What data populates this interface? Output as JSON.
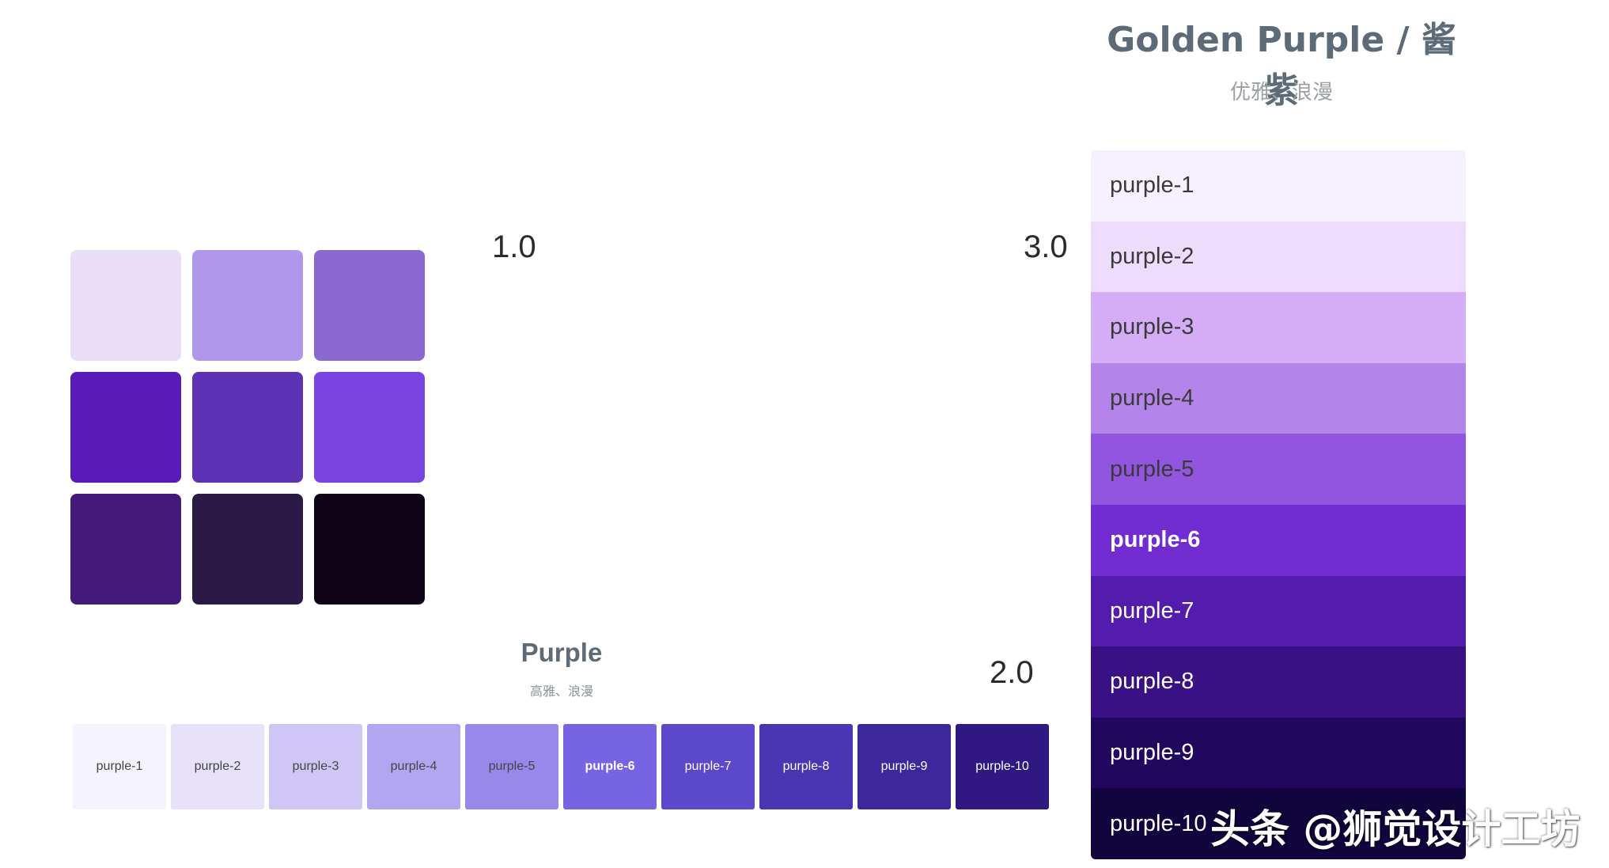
{
  "section1": {
    "version": "1.0",
    "squares": [
      {
        "color": "#e8def8"
      },
      {
        "color": "#b197ec"
      },
      {
        "color": "#8b69d1"
      },
      {
        "color": "#5a1ab8"
      },
      {
        "color": "#5e32b4"
      },
      {
        "color": "#7c43e3"
      },
      {
        "color": "#431a7a"
      },
      {
        "color": "#2b1a46"
      },
      {
        "color": "#100518"
      }
    ]
  },
  "section2": {
    "version": "2.0",
    "title": "Purple",
    "subtitle": "高雅、浪漫",
    "swatches": [
      {
        "label": "purple-1",
        "color": "#f5f3fd",
        "text_color": "#444444"
      },
      {
        "label": "purple-2",
        "color": "#e7e1f9",
        "text_color": "#444444"
      },
      {
        "label": "purple-3",
        "color": "#d0c6f5",
        "text_color": "#444444"
      },
      {
        "label": "purple-4",
        "color": "#b3a6f0",
        "text_color": "#444444"
      },
      {
        "label": "purple-5",
        "color": "#9888e9",
        "text_color": "#444444"
      },
      {
        "label": "purple-6",
        "color": "#7664e3",
        "text_color": "#ffffff"
      },
      {
        "label": "purple-7",
        "color": "#5c48cb",
        "text_color": "#ffffff"
      },
      {
        "label": "purple-8",
        "color": "#4a35b3",
        "text_color": "#ffffff"
      },
      {
        "label": "purple-9",
        "color": "#3d289b",
        "text_color": "#ffffff"
      },
      {
        "label": "purple-10",
        "color": "#301883",
        "text_color": "#ffffff"
      }
    ]
  },
  "section3": {
    "version": "3.0",
    "title": "Golden Purple / 酱紫",
    "subtitle": "优雅、浪漫",
    "swatches": [
      {
        "label": "purple-1",
        "color": "#f7f0fe",
        "text_color": "#3a3a3a",
        "bold": false
      },
      {
        "label": "purple-2",
        "color": "#eedcfc",
        "text_color": "#3a3a3a",
        "bold": false
      },
      {
        "label": "purple-3",
        "color": "#d4adf6",
        "text_color": "#3a3a3a",
        "bold": false
      },
      {
        "label": "purple-4",
        "color": "#b385ea",
        "text_color": "#3a3a3a",
        "bold": false
      },
      {
        "label": "purple-5",
        "color": "#9155df",
        "text_color": "#3a3a3a",
        "bold": false
      },
      {
        "label": "purple-6",
        "color": "#712cd2",
        "text_color": "#ffffff",
        "bold": true
      },
      {
        "label": "purple-7",
        "color": "#531cad",
        "text_color": "#ffffff",
        "bold": false
      },
      {
        "label": "purple-8",
        "color": "#3a1185",
        "text_color": "#ffffff",
        "bold": false
      },
      {
        "label": "purple-9",
        "color": "#21075e",
        "text_color": "#ffffff",
        "bold": false
      },
      {
        "label": "purple-10",
        "color": "#12043d",
        "text_color": "#ffffff",
        "bold": false
      }
    ]
  },
  "watermark": "头条 @狮觉设计工坊"
}
